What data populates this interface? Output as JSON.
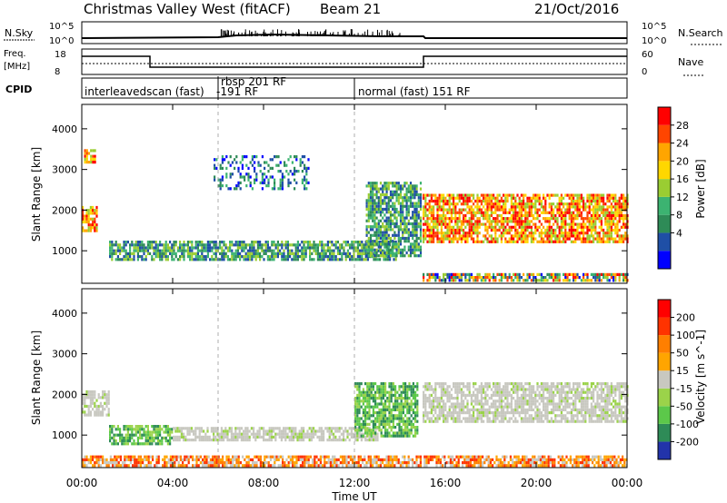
{
  "header": {
    "title": "Christmas Valley West (fitACF)",
    "beam": "Beam 21",
    "date": "21/Oct/2016"
  },
  "top_panels": {
    "nsky_label": "N.Sky",
    "nsky_ticks": [
      "10^5",
      "10^0"
    ],
    "nsearch_label": "N.Search",
    "nsearch_ticks": [
      "10^5",
      "10^0"
    ],
    "freq_label": "Freq.",
    "freq_unit": "[MHz]",
    "freq_ticks": [
      "18",
      "8"
    ],
    "nave_label": "Nave",
    "nave_ticks": [
      "60",
      "0"
    ],
    "cpid_label": "CPID",
    "cpid_modes": [
      "interleavedscan (fast)",
      "rbsp 201 RF",
      "-191 RF",
      "normal (fast) 151 RF"
    ]
  },
  "x_axis": {
    "label": "Time UT",
    "ticks": [
      "00:00",
      "04:00",
      "08:00",
      "12:00",
      "16:00",
      "20:00",
      "00:00"
    ]
  },
  "power_colorbar": {
    "label": "Power [dB]",
    "ticks": [
      "28",
      "24",
      "20",
      "16",
      "12",
      "8",
      "4"
    ],
    "colors": [
      "#0000ff",
      "#1f4fa6",
      "#2e8b57",
      "#3cb371",
      "#9acd32",
      "#ffd700",
      "#ffa500",
      "#ff4500",
      "#ff0000"
    ]
  },
  "velocity_colorbar": {
    "label": "Velocity [m s^-1]",
    "ticks": [
      "200",
      "100",
      "50",
      "15",
      "-15",
      "-50",
      "-100",
      "-200"
    ],
    "colors": [
      "#2233aa",
      "#2e8b57",
      "#5cc84a",
      "#9bd34a",
      "#c8c8c0",
      "#ffa500",
      "#ff7f00",
      "#ff3300",
      "#ff0000"
    ]
  },
  "chart_data": [
    {
      "type": "heatmap",
      "panel": "power",
      "xlabel": "Time UT",
      "ylabel": "Slant Range [km]",
      "xlim": [
        0,
        24
      ],
      "ylim": [
        200,
        4600
      ],
      "y_ticks": [
        1000,
        2000,
        3000,
        4000
      ],
      "grid": false,
      "colorbar_label": "Power [dB]",
      "echo_regions": [
        {
          "t0": 0.0,
          "t1": 0.7,
          "r0": 1500,
          "r1": 2100,
          "level": "high"
        },
        {
          "t0": 0.1,
          "t1": 0.6,
          "r0": 3200,
          "r1": 3500,
          "level": "high"
        },
        {
          "t0": 1.2,
          "t1": 13.8,
          "r0": 800,
          "r1": 1250,
          "level": "mid"
        },
        {
          "t0": 5.8,
          "t1": 10.0,
          "r0": 2500,
          "r1": 3350,
          "level": "low"
        },
        {
          "t0": 12.5,
          "t1": 14.9,
          "r0": 900,
          "r1": 2700,
          "level": "mid"
        },
        {
          "t0": 15.0,
          "t1": 24.0,
          "r0": 1200,
          "r1": 2400,
          "level": "high"
        },
        {
          "t0": 15.0,
          "t1": 24.0,
          "r0": 250,
          "r1": 450,
          "level": "mixed"
        }
      ]
    },
    {
      "type": "heatmap",
      "panel": "velocity",
      "xlabel": "Time UT",
      "ylabel": "Slant Range [km]",
      "xlim": [
        0,
        24
      ],
      "ylim": [
        200,
        4600
      ],
      "y_ticks": [
        1000,
        2000,
        3000,
        4000
      ],
      "grid": false,
      "colorbar_label": "Velocity [m s^-1]",
      "echo_regions": [
        {
          "t0": 0.0,
          "t1": 1.2,
          "r0": 1500,
          "r1": 2100,
          "level": "ground"
        },
        {
          "t0": 1.2,
          "t1": 4.0,
          "r0": 800,
          "r1": 1250,
          "level": "positive"
        },
        {
          "t0": 4.0,
          "t1": 13.0,
          "r0": 900,
          "r1": 1200,
          "level": "ground"
        },
        {
          "t0": 12.0,
          "t1": 14.8,
          "r0": 1000,
          "r1": 2300,
          "level": "positive"
        },
        {
          "t0": 15.0,
          "t1": 24.0,
          "r0": 1300,
          "r1": 2300,
          "level": "ground"
        },
        {
          "t0": 0.0,
          "t1": 24.0,
          "r0": 250,
          "r1": 500,
          "level": "negative"
        }
      ]
    }
  ]
}
